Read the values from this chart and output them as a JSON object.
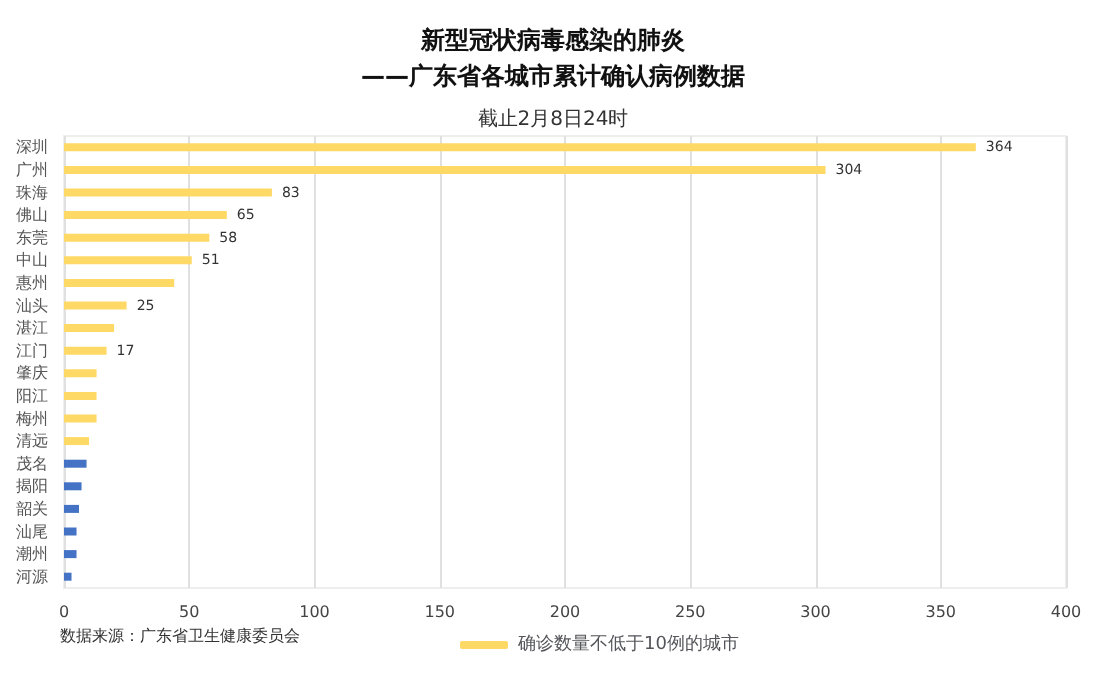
{
  "chart_data": {
    "type": "bar",
    "orientation": "horizontal",
    "title": "新型冠状病毒感染的肺炎\n——广东省各城市累计确认病例数据",
    "subtitle": "截止2月8日24时",
    "categories": [
      "深圳",
      "广州",
      "珠海",
      "佛山",
      "东莞",
      "中山",
      "惠州",
      "汕头",
      "湛江",
      "江门",
      "肇庆",
      "阳江",
      "梅州",
      "清远",
      "茂名",
      "揭阳",
      "韶关",
      "汕尾",
      "潮州",
      "河源"
    ],
    "series": [
      {
        "name": "确诊数量不低于10例的城市",
        "color": "#ffd966",
        "values": [
          364,
          304,
          83,
          65,
          58,
          51,
          44,
          25,
          20,
          17,
          13,
          13,
          13,
          10,
          null,
          null,
          null,
          null,
          null,
          null
        ],
        "value_labels": [
          "364",
          "304",
          "83",
          "65",
          "58",
          "51",
          null,
          "25",
          null,
          "17",
          null,
          null,
          null,
          null,
          null,
          null,
          null,
          null,
          null,
          null
        ]
      },
      {
        "color": "#4472c4",
        "values": [
          null,
          null,
          null,
          null,
          null,
          null,
          null,
          null,
          null,
          null,
          null,
          null,
          null,
          null,
          9,
          7,
          6,
          5,
          5,
          3
        ]
      }
    ],
    "xlim": [
      0,
      400
    ],
    "xticks": [
      0,
      50,
      100,
      150,
      200,
      250,
      300,
      350,
      400
    ],
    "grid": "x",
    "legend": "bottom",
    "annotations": [
      "数据来源：广东省卫生健康委员会"
    ]
  }
}
